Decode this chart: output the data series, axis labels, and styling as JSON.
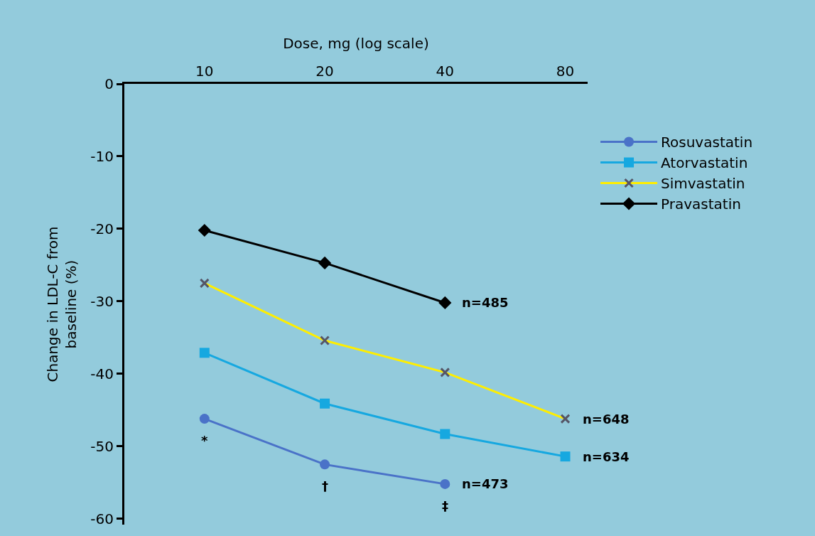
{
  "chart_data": {
    "type": "line",
    "xlabel": "Dose, mg (log scale)",
    "ylabel": "Change in LDL-C from\nbaseline (%)",
    "log": "x",
    "xlim": [
      6.3,
      91
    ],
    "xticks": [
      10,
      20,
      40,
      80
    ],
    "ylim": [
      -60.8,
      0
    ],
    "yticks": [
      0,
      -10,
      -20,
      -30,
      -40,
      -50,
      -60
    ],
    "grid": false,
    "legend": "right",
    "series": [
      {
        "name": "Rosuvastatin",
        "color": "#4a72c8",
        "marker": "circle",
        "x": [
          10,
          20,
          40
        ],
        "values": [
          -46.2,
          -52.5,
          -55.2
        ]
      },
      {
        "name": "Atorvastatin",
        "color": "#16a8e0",
        "marker": "square",
        "x": [
          10,
          20,
          40,
          80
        ],
        "values": [
          -37.1,
          -44.1,
          -48.3,
          -51.4
        ]
      },
      {
        "name": "Simvastatin",
        "color": "#ffee00",
        "marker": "cross",
        "x": [
          10,
          20,
          40,
          80
        ],
        "values": [
          -27.5,
          -35.4,
          -39.8,
          -46.2
        ]
      },
      {
        "name": "Pravastatin",
        "color": "#000000",
        "marker": "diamond",
        "x": [
          10,
          20,
          40
        ],
        "values": [
          -20.2,
          -24.7,
          -30.2
        ]
      }
    ],
    "annotations": [
      {
        "text": "n=485",
        "x": 40,
        "y": -30.2
      },
      {
        "text": "n=648",
        "x": 80,
        "y": -46.2
      },
      {
        "text": "n=634",
        "x": 80,
        "y": -51.4
      },
      {
        "text": "n=473",
        "x": 40,
        "y": -55.2
      },
      {
        "text": "*",
        "x": 10,
        "y": -46.2
      },
      {
        "text": "†",
        "x": 20,
        "y": -52.5
      },
      {
        "text": "‡",
        "x": 40,
        "y": -55.2
      }
    ]
  }
}
